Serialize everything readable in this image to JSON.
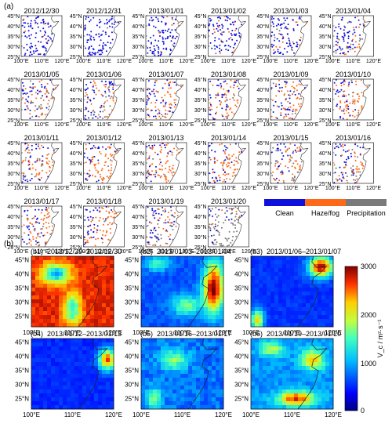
{
  "panel_a": {
    "label": "(a)",
    "dates": [
      "2012/12/30",
      "2012/12/31",
      "2013/01/01",
      "2013/01/02",
      "2013/01/03",
      "2013/01/04",
      "2013/01/05",
      "2013/01/06",
      "2013/01/07",
      "2013/01/08",
      "2013/01/09",
      "2013/01/10",
      "2013/01/11",
      "2013/01/12",
      "2013/01/13",
      "2013/01/14",
      "2013/01/15",
      "2013/01/16",
      "2013/01/17",
      "2013/01/18",
      "2013/01/19",
      "2013/01/20"
    ],
    "haze_level": [
      0.05,
      0.05,
      0.08,
      0.12,
      0.15,
      0.22,
      0.3,
      0.38,
      0.42,
      0.45,
      0.48,
      0.52,
      0.55,
      0.58,
      0.6,
      0.55,
      0.45,
      0.4,
      0.5,
      0.55,
      0.35,
      0.1
    ],
    "precip_level": [
      0.02,
      0.02,
      0.03,
      0.03,
      0.12,
      0.2,
      0.25,
      0.15,
      0.05,
      0.05,
      0.05,
      0.05,
      0.05,
      0.05,
      0.08,
      0.08,
      0.25,
      0.15,
      0.05,
      0.05,
      0.2,
      0.75
    ],
    "lat_ticks": [
      "45°N",
      "40°N",
      "35°N",
      "30°N",
      "25°N"
    ],
    "lon_ticks": [
      "100°E",
      "110°E",
      "120°E"
    ],
    "legend": {
      "items": [
        {
          "label": "Clean",
          "color": "#1010dd"
        },
        {
          "label": "Haze/fog",
          "color": "#ff6a1a"
        },
        {
          "label": "Precipitation",
          "color": "#7a7a7a"
        }
      ]
    }
  },
  "panel_b": {
    "label": "(b)",
    "maps": [
      {
        "label": "(b1)",
        "title": "2012/12/29–2012/12/30",
        "scenario": "high"
      },
      {
        "label": "(b2)",
        "title": "2013/01/03–2013/01/04",
        "scenario": "coast"
      },
      {
        "label": "(b3)",
        "title": "2013/01/06–2013/01/07",
        "scenario": "northeast"
      },
      {
        "label": "(b4)",
        "title": "2013/01/12–2013/01/13",
        "scenario": "low"
      },
      {
        "label": "(b5)",
        "title": "2013/01/16–2013/01/17",
        "scenario": "mid"
      },
      {
        "label": "(b6)",
        "title": "2013/01/19–2013/01/20",
        "scenario": "south"
      }
    ],
    "lat_ticks": [
      "45°N",
      "40°N",
      "35°N",
      "30°N",
      "25°N"
    ],
    "lon_ticks": [
      "100°E",
      "110°E",
      "120°E"
    ],
    "colorbar": {
      "min": 0,
      "max": 3000,
      "ticks": [
        "0",
        "1000",
        "2000",
        "3000"
      ],
      "label": "V_c / m²·s⁻¹",
      "colors": [
        "#00007f",
        "#0000ff",
        "#007fff",
        "#00ffff",
        "#7fff7f",
        "#ffff00",
        "#ff7f00",
        "#ff0000",
        "#7f0000"
      ]
    }
  }
}
